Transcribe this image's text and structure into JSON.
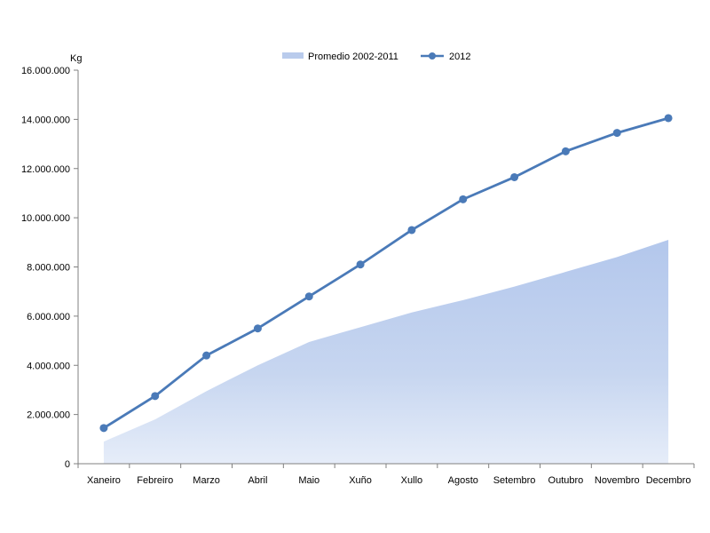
{
  "chart_data": {
    "type": "area+line",
    "ylabel": "Kg",
    "ylim": [
      0,
      16000000
    ],
    "yticks": [
      0,
      2000000,
      4000000,
      6000000,
      8000000,
      10000000,
      12000000,
      14000000,
      16000000
    ],
    "ytick_labels": [
      "0",
      "2.000.000",
      "4.000.000",
      "6.000.000",
      "8.000.000",
      "10.000.000",
      "12.000.000",
      "14.000.000",
      "16.000.000"
    ],
    "categories": [
      "Xaneiro",
      "Febreiro",
      "Marzo",
      "Abril",
      "Maio",
      "Xuño",
      "Xullo",
      "Agosto",
      "Setembro",
      "Outubro",
      "Novembro",
      "Decembro"
    ],
    "series": [
      {
        "name": "Promedio 2002-2011",
        "type": "area",
        "color": "#b9cbec",
        "values": [
          900000,
          1800000,
          2950000,
          4000000,
          4950000,
          5550000,
          6150000,
          6650000,
          7200000,
          7800000,
          8400000,
          9100000
        ]
      },
      {
        "name": "2012",
        "type": "line",
        "color": "#4a7ab8",
        "values": [
          1450000,
          2750000,
          4400000,
          5500000,
          6800000,
          8100000,
          9500000,
          10750000,
          11650000,
          12700000,
          13450000,
          14050000
        ]
      }
    ],
    "legend": "top-center",
    "grid": false
  }
}
